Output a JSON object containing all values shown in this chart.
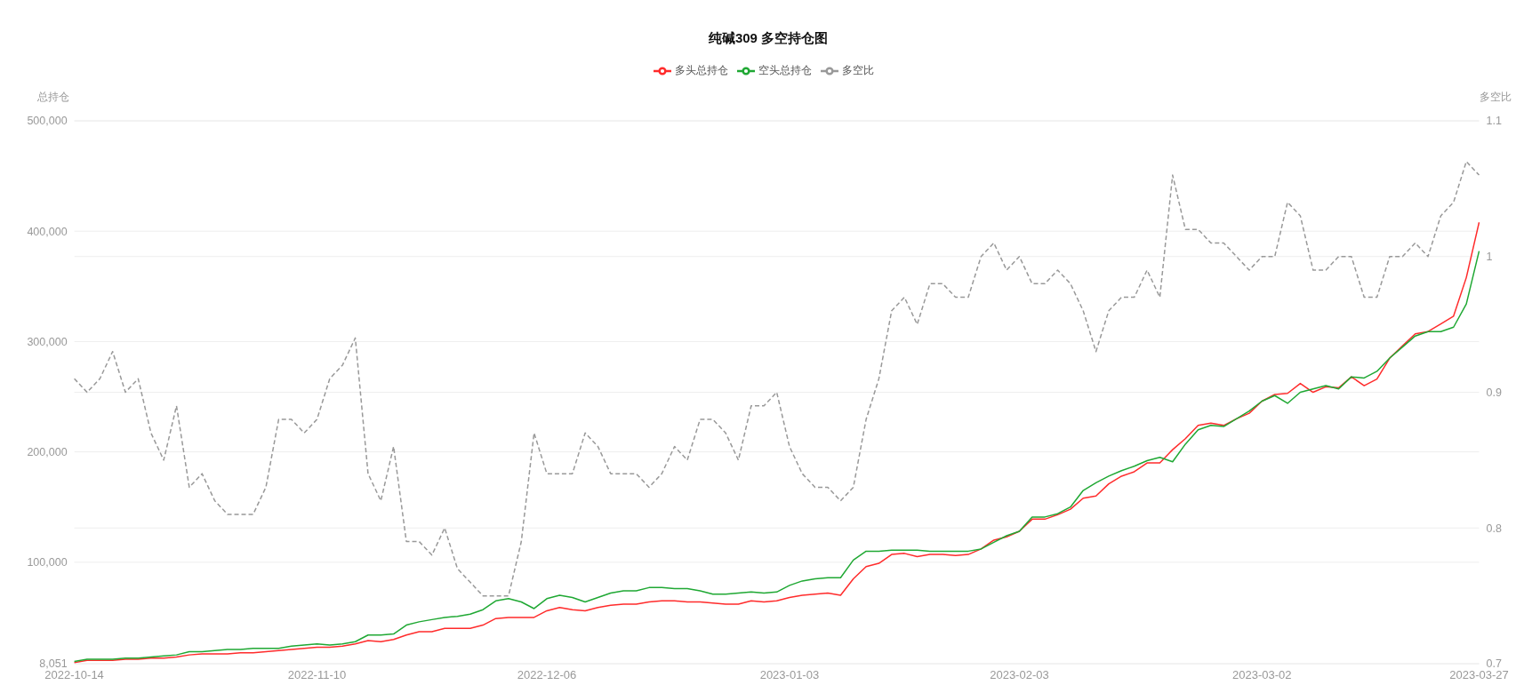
{
  "chart_data": {
    "type": "line",
    "title": "纯碱309 多空持仓图",
    "ylabel": "总持仓",
    "y2label": "多空比",
    "legend": "top",
    "grid": "y",
    "categories": [
      "2022-10-14",
      null,
      null,
      null,
      null,
      null,
      null,
      null,
      null,
      null,
      null,
      null,
      null,
      null,
      null,
      null,
      null,
      null,
      null,
      "2022-11-10",
      null,
      null,
      null,
      null,
      null,
      null,
      null,
      null,
      null,
      null,
      null,
      null,
      null,
      null,
      null,
      null,
      null,
      "2022-12-06",
      null,
      null,
      null,
      null,
      null,
      null,
      null,
      null,
      null,
      null,
      null,
      null,
      null,
      null,
      null,
      null,
      null,
      null,
      "2023-01-03",
      null,
      null,
      null,
      null,
      null,
      null,
      null,
      null,
      null,
      null,
      null,
      null,
      null,
      null,
      null,
      null,
      null,
      "2023-02-03",
      null,
      null,
      null,
      null,
      null,
      null,
      null,
      null,
      null,
      null,
      null,
      null,
      null,
      null,
      null,
      null,
      null,
      null,
      "2023-03-02",
      null,
      null,
      null,
      null,
      null,
      null,
      null,
      null,
      null,
      null,
      null,
      null,
      null,
      null,
      null,
      null,
      "2023-03-27"
    ],
    "series": [
      {
        "name": "多头总持仓",
        "color": "#ff2b2b",
        "line_style": "solid",
        "values": [
          9000,
          11000,
          11000,
          11000,
          12000,
          12000,
          13000,
          13000,
          14000,
          16000,
          17000,
          17000,
          17000,
          18000,
          18000,
          19000,
          20000,
          21000,
          22000,
          23000,
          23000,
          24000,
          26000,
          29000,
          28000,
          30000,
          34000,
          37000,
          37000,
          40000,
          40000,
          40000,
          43000,
          49000,
          50000,
          50000,
          50000,
          56000,
          59000,
          57000,
          56000,
          59000,
          61000,
          62000,
          62000,
          64000,
          65000,
          65000,
          64000,
          64000,
          63000,
          62000,
          62000,
          65000,
          64000,
          65000,
          68000,
          70000,
          71000,
          72000,
          70000,
          85000,
          96000,
          99000,
          107000,
          108000,
          105000,
          107000,
          107000,
          106000,
          107000,
          112000,
          120000,
          123000,
          128000,
          139000,
          139000,
          143000,
          148000,
          158000,
          160000,
          171000,
          178000,
          182000,
          190000,
          190000,
          202000,
          212000,
          224000,
          226000,
          224000,
          230000,
          235000,
          246000,
          252000,
          253000,
          262000,
          254000,
          259000,
          258000,
          268000,
          260000,
          266000,
          285000,
          296000,
          307000,
          309000,
          316000,
          323000,
          358000,
          408000
        ]
      },
      {
        "name": "空头总持仓",
        "color": "#1fa833",
        "line_style": "solid",
        "values": [
          10000,
          12000,
          12000,
          12000,
          13000,
          13000,
          14000,
          15000,
          16000,
          19000,
          19000,
          20000,
          21000,
          21000,
          22000,
          22000,
          22000,
          24000,
          25000,
          26000,
          25000,
          26000,
          28000,
          34000,
          34000,
          35000,
          43000,
          46000,
          48000,
          50000,
          51000,
          53000,
          57000,
          65000,
          67000,
          64000,
          58000,
          67000,
          70000,
          68000,
          64000,
          68000,
          72000,
          74000,
          74000,
          77000,
          77000,
          76000,
          76000,
          74000,
          71000,
          71000,
          72000,
          73000,
          72000,
          73000,
          79000,
          83000,
          85000,
          86000,
          86000,
          102000,
          110000,
          110000,
          111000,
          111000,
          111000,
          110000,
          110000,
          110000,
          110000,
          112000,
          118000,
          124000,
          128000,
          141000,
          141000,
          144000,
          150000,
          165000,
          172000,
          178000,
          183000,
          187000,
          192000,
          195000,
          191000,
          207000,
          220000,
          224000,
          223000,
          230000,
          237000,
          246000,
          251000,
          244000,
          254000,
          257000,
          260000,
          257000,
          268000,
          267000,
          273000,
          285000,
          295000,
          305000,
          309000,
          309000,
          313000,
          334000,
          382000
        ]
      },
      {
        "name": "多空比",
        "color": "#999999",
        "axis": "y2",
        "line_style": "dashed",
        "values": [
          0.91,
          0.9,
          0.91,
          0.93,
          0.9,
          0.91,
          0.87,
          0.85,
          0.89,
          0.83,
          0.84,
          0.82,
          0.81,
          0.81,
          0.81,
          0.83,
          0.88,
          0.88,
          0.87,
          0.88,
          0.91,
          0.92,
          0.94,
          0.84,
          0.82,
          0.86,
          0.79,
          0.79,
          0.78,
          0.8,
          0.77,
          0.76,
          0.75,
          0.75,
          0.75,
          0.79,
          0.87,
          0.84,
          0.84,
          0.84,
          0.87,
          0.86,
          0.84,
          0.84,
          0.84,
          0.83,
          0.84,
          0.86,
          0.85,
          0.88,
          0.88,
          0.87,
          0.85,
          0.89,
          0.89,
          0.9,
          0.86,
          0.84,
          0.83,
          0.83,
          0.82,
          0.83,
          0.88,
          0.91,
          0.96,
          0.97,
          0.95,
          0.98,
          0.98,
          0.97,
          0.97,
          1.0,
          1.01,
          0.99,
          1.0,
          0.98,
          0.98,
          0.99,
          0.98,
          0.96,
          0.93,
          0.96,
          0.97,
          0.97,
          0.99,
          0.97,
          1.06,
          1.02,
          1.02,
          1.01,
          1.01,
          1.0,
          0.99,
          1.0,
          1.0,
          1.04,
          1.03,
          0.99,
          0.99,
          1.0,
          1.0,
          0.97,
          0.97,
          1.0,
          1.0,
          1.01,
          1.0,
          1.03,
          1.04,
          1.07,
          1.06
        ]
      }
    ],
    "ylim": [
      8051,
      500000
    ],
    "yticks": [
      {
        "value": 8051,
        "label": "8,051"
      },
      {
        "value": 100000,
        "label": "100,000"
      },
      {
        "value": 200000,
        "label": "200,000"
      },
      {
        "value": 300000,
        "label": "300,000"
      },
      {
        "value": 400000,
        "label": "400,000"
      },
      {
        "value": 500000,
        "label": "500,000"
      }
    ],
    "y2lim": [
      0.7,
      1.1
    ],
    "y2ticks": [
      0.7,
      0.8,
      0.9,
      1,
      1.1
    ]
  }
}
